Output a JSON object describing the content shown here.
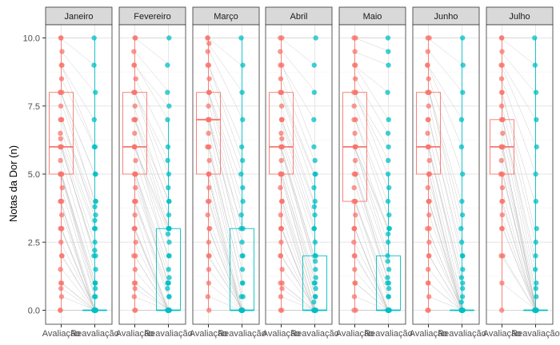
{
  "chart_data": {
    "type": "scatter",
    "ylabel": "Notas da Dor (n)",
    "xlabel": "",
    "ylim": [
      0,
      10
    ],
    "yticks": [
      0.0,
      2.5,
      5.0,
      7.5,
      10.0
    ],
    "yticklabels": [
      "0.0",
      "2.5",
      "5.0",
      "7.5",
      "10.0"
    ],
    "categories": [
      "Avaliação",
      "Reavaliação"
    ],
    "grid": true,
    "colors": {
      "first": "#F8766D",
      "second": "#00BFC4",
      "lines": "#bdbdbd",
      "strip": "#d9d9d9"
    },
    "panels": [
      {
        "name": "Janeiro",
        "boxes": [
          {
            "q1": 5,
            "median": 6,
            "q3": 8,
            "lower": 0,
            "upper": 10
          },
          {
            "q1": 0,
            "median": 0,
            "q3": 0,
            "lower": 0,
            "upper": 10
          }
        ],
        "values_first": [
          10,
          10,
          9.5,
          9,
          9,
          8.5,
          8,
          8,
          8,
          7.5,
          7,
          7,
          7,
          6.5,
          6.3,
          6,
          6,
          6,
          6,
          5.5,
          5,
          5,
          5,
          5,
          5,
          4.5,
          4,
          4,
          4,
          3.5,
          3,
          3,
          3,
          2.5,
          2,
          2,
          1.5,
          1,
          1,
          0.8,
          0.5,
          0,
          0
        ],
        "values_second": [
          10,
          9,
          8,
          7,
          6,
          6,
          5,
          5,
          4,
          4,
          3.8,
          3.5,
          3.3,
          3,
          3,
          2.5,
          2.2,
          2,
          2,
          1.5,
          1,
          1,
          1,
          0.8,
          0.5,
          0.5,
          0,
          0,
          0,
          0,
          0,
          0,
          0,
          0,
          0,
          0,
          0,
          0,
          0,
          0,
          0,
          0,
          0
        ]
      },
      {
        "name": "Fevereiro",
        "boxes": [
          {
            "q1": 5,
            "median": 6,
            "q3": 8,
            "lower": 0,
            "upper": 10
          },
          {
            "q1": 0,
            "median": 0,
            "q3": 3,
            "lower": 0,
            "upper": 7
          }
        ],
        "values_first": [
          10,
          10,
          9.5,
          9,
          9,
          8.5,
          8,
          8,
          8,
          7.5,
          7,
          7,
          7,
          6.5,
          6,
          6,
          6,
          6,
          5.5,
          5,
          5,
          5,
          5,
          4.5,
          4,
          4,
          4,
          3.5,
          3,
          3,
          3,
          2.5,
          2,
          2,
          1.5,
          1,
          1,
          0.8,
          0.5,
          0,
          0
        ],
        "values_second": [
          10,
          9,
          8,
          7.5,
          7,
          6,
          5.5,
          5,
          4.5,
          4,
          4,
          3.5,
          3,
          3,
          3,
          2.8,
          2.5,
          2,
          2,
          1.5,
          1.2,
          1,
          1,
          1,
          0.8,
          0.5,
          0.5,
          0,
          0,
          0,
          0,
          0,
          0,
          0,
          0,
          0,
          0,
          0,
          0,
          0,
          0
        ]
      },
      {
        "name": "Março",
        "boxes": [
          {
            "q1": 5,
            "median": 7,
            "q3": 8,
            "lower": 0,
            "upper": 10
          },
          {
            "q1": 0,
            "median": 0,
            "q3": 3,
            "lower": 0,
            "upper": 10
          }
        ],
        "values_first": [
          10,
          10,
          9.8,
          9.5,
          9,
          9,
          8.5,
          8,
          8,
          8,
          7.5,
          7,
          7,
          7,
          7,
          6.5,
          6,
          6,
          6,
          5.5,
          5,
          5,
          5,
          4.5,
          4,
          4,
          3.5,
          3,
          3,
          2.5,
          2,
          2,
          1.5,
          1,
          0.5,
          0
        ],
        "values_second": [
          10,
          9,
          8,
          7,
          6,
          5.5,
          5,
          4.5,
          4,
          3.5,
          3,
          3,
          2.5,
          2,
          2,
          1.5,
          1,
          1,
          0.5,
          0.5,
          0,
          0,
          0,
          0,
          0,
          0,
          0,
          0,
          0,
          0,
          0,
          0,
          0,
          0,
          0,
          0
        ]
      },
      {
        "name": "Abril",
        "boxes": [
          {
            "q1": 5,
            "median": 6,
            "q3": 8,
            "lower": 0,
            "upper": 10
          },
          {
            "q1": 0,
            "median": 0,
            "q3": 2,
            "lower": 0,
            "upper": 5
          }
        ],
        "values_first": [
          10,
          10,
          9.5,
          9,
          9,
          8.5,
          8,
          8,
          8,
          7.5,
          7,
          7,
          7,
          6.5,
          6.3,
          6,
          6,
          6,
          6,
          5.5,
          5,
          5,
          5,
          5,
          4.5,
          4,
          4,
          4,
          3.5,
          3,
          3,
          3,
          2.5,
          2,
          2,
          1.5,
          1,
          1,
          0.8,
          0.5,
          0,
          0
        ],
        "values_second": [
          10,
          9,
          8,
          7,
          6,
          5.5,
          5,
          5,
          4.5,
          4,
          3.8,
          3.5,
          3,
          3,
          2.5,
          2,
          2,
          1.8,
          1.5,
          1.2,
          1,
          1,
          0.8,
          0.5,
          0.5,
          0.3,
          0,
          0,
          0,
          0,
          0,
          0,
          0,
          0,
          0,
          0,
          0,
          0,
          0,
          0,
          0,
          0
        ]
      },
      {
        "name": "Maio",
        "boxes": [
          {
            "q1": 4,
            "median": 6,
            "q3": 8,
            "lower": 0,
            "upper": 10
          },
          {
            "q1": 0,
            "median": 0,
            "q3": 2,
            "lower": 0,
            "upper": 5
          }
        ],
        "values_first": [
          10,
          10,
          9.5,
          9,
          9,
          8.5,
          8,
          8,
          8,
          7.5,
          7,
          7,
          6.5,
          6,
          6,
          6,
          6,
          5.5,
          5,
          5,
          5,
          4.5,
          4,
          4,
          4,
          3.5,
          3,
          3,
          3,
          2.5,
          2,
          2,
          1.5,
          1,
          1,
          0.5,
          0,
          0
        ],
        "values_second": [
          10,
          9.5,
          9,
          8,
          7,
          6.5,
          6,
          5.5,
          5,
          4.5,
          4,
          3.5,
          3,
          3,
          2.8,
          2.5,
          2,
          1.8,
          1.5,
          1.2,
          1,
          1,
          0.8,
          0.5,
          0.5,
          0,
          0,
          0,
          0,
          0,
          0,
          0,
          0,
          0,
          0,
          0,
          0,
          0
        ]
      },
      {
        "name": "Junho",
        "boxes": [
          {
            "q1": 5,
            "median": 6,
            "q3": 8,
            "lower": 0,
            "upper": 10
          },
          {
            "q1": 0,
            "median": 0,
            "q3": 0,
            "lower": 0,
            "upper": 10
          }
        ],
        "values_first": [
          10,
          10,
          9.5,
          9,
          9,
          8.5,
          8,
          8,
          8,
          7.5,
          7,
          7,
          6.5,
          6,
          6,
          6,
          5.5,
          5,
          5,
          5,
          4.5,
          4,
          4,
          4,
          3.5,
          3,
          3,
          2.5,
          2,
          2,
          1.5,
          1,
          1,
          0.5,
          0,
          0
        ],
        "values_second": [
          10,
          9,
          8,
          7,
          6,
          5,
          4,
          3.5,
          3,
          2.5,
          2,
          2,
          1.5,
          1.2,
          1,
          0.8,
          0.5,
          0.3,
          0,
          0,
          0,
          0,
          0,
          0,
          0,
          0,
          0,
          0,
          0,
          0,
          0,
          0,
          0,
          0,
          0,
          0
        ]
      },
      {
        "name": "Julho",
        "boxes": [
          {
            "q1": 5,
            "median": 6,
            "q3": 7,
            "lower": 0,
            "upper": 10
          },
          {
            "q1": 0,
            "median": 0,
            "q3": 0,
            "lower": 0,
            "upper": 10
          }
        ],
        "values_first": [
          10,
          10,
          9.5,
          9,
          9,
          8.5,
          8,
          8,
          7.5,
          7,
          7,
          7,
          6.5,
          6,
          6,
          6,
          6,
          5.5,
          5,
          5,
          5,
          4.5,
          4,
          4,
          3.5,
          3,
          3,
          2,
          2,
          1,
          0
        ],
        "values_second": [
          10,
          9,
          8,
          7,
          6,
          5,
          4,
          3,
          2.5,
          2,
          1.5,
          1,
          0.8,
          0.5,
          0,
          0,
          0,
          0,
          0,
          0,
          0,
          0,
          0,
          0,
          0,
          0,
          0,
          0,
          0,
          0,
          0
        ]
      }
    ]
  }
}
